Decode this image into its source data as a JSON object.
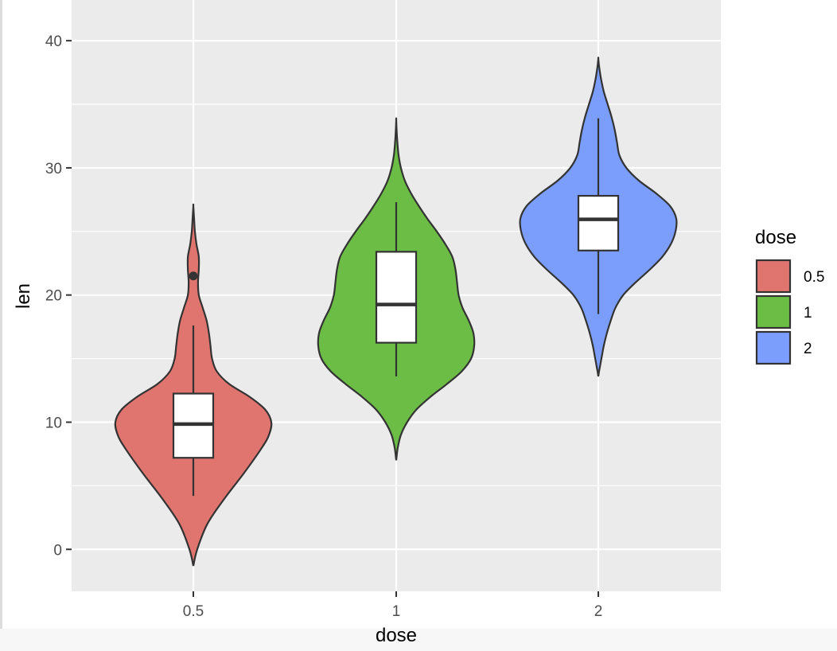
{
  "chart_data": {
    "type": "violin",
    "xlabel": "dose",
    "ylabel": "len",
    "categories": [
      "0.5",
      "1",
      "2"
    ],
    "ylim": [
      -3.3,
      43.2
    ],
    "y_ticks": [
      0,
      10,
      20,
      30,
      40
    ],
    "grid": true,
    "legend": {
      "title": "dose",
      "position": "right",
      "entries": [
        "0.5",
        "1",
        "2"
      ]
    },
    "series": [
      {
        "category": "0.5",
        "color": "#e07570",
        "min": -1.3,
        "max": 27.0,
        "box": {
          "whisker_low": 4.2,
          "q1": 7.2,
          "median": 9.85,
          "q3": 12.25,
          "whisker_high": 17.6
        },
        "outliers": [
          21.5
        ],
        "density": [
          [
            -1.3,
            0.0
          ],
          [
            0.0,
            0.05
          ],
          [
            2.0,
            0.18
          ],
          [
            4.0,
            0.4
          ],
          [
            6.0,
            0.65
          ],
          [
            8.0,
            0.88
          ],
          [
            9.0,
            0.97
          ],
          [
            10.0,
            1.0
          ],
          [
            11.0,
            0.92
          ],
          [
            12.0,
            0.72
          ],
          [
            13.0,
            0.46
          ],
          [
            14.0,
            0.3
          ],
          [
            15.0,
            0.24
          ],
          [
            16.0,
            0.22
          ],
          [
            17.0,
            0.2
          ],
          [
            18.0,
            0.17
          ],
          [
            19.0,
            0.12
          ],
          [
            20.0,
            0.07
          ],
          [
            21.0,
            0.06
          ],
          [
            22.0,
            0.07
          ],
          [
            23.0,
            0.07
          ],
          [
            24.0,
            0.04
          ],
          [
            25.0,
            0.02
          ],
          [
            26.0,
            0.01
          ],
          [
            27.0,
            0.0
          ]
        ]
      },
      {
        "category": "1",
        "color": "#6cbd45",
        "min": 7.0,
        "max": 33.8,
        "box": {
          "whisker_low": 13.6,
          "q1": 16.25,
          "median": 19.25,
          "q3": 23.4,
          "whisker_high": 27.3
        },
        "outliers": [],
        "density": [
          [
            7.0,
            0.0
          ],
          [
            8.0,
            0.02
          ],
          [
            9.0,
            0.06
          ],
          [
            10.0,
            0.14
          ],
          [
            11.0,
            0.26
          ],
          [
            12.0,
            0.44
          ],
          [
            13.0,
            0.65
          ],
          [
            14.0,
            0.84
          ],
          [
            15.0,
            0.96
          ],
          [
            16.0,
            1.0
          ],
          [
            17.0,
            0.99
          ],
          [
            18.0,
            0.93
          ],
          [
            19.0,
            0.85
          ],
          [
            20.0,
            0.8
          ],
          [
            21.0,
            0.78
          ],
          [
            22.0,
            0.76
          ],
          [
            23.0,
            0.72
          ],
          [
            24.0,
            0.63
          ],
          [
            25.0,
            0.52
          ],
          [
            26.0,
            0.4
          ],
          [
            27.0,
            0.29
          ],
          [
            28.0,
            0.19
          ],
          [
            29.0,
            0.11
          ],
          [
            30.0,
            0.06
          ],
          [
            31.0,
            0.03
          ],
          [
            32.0,
            0.015
          ],
          [
            33.0,
            0.005
          ],
          [
            33.8,
            0.0
          ]
        ]
      },
      {
        "category": "2",
        "color": "#7b9dfc",
        "min": 13.6,
        "max": 38.6,
        "box": {
          "whisker_low": 18.5,
          "q1": 23.5,
          "median": 25.95,
          "q3": 27.8,
          "whisker_high": 33.9
        },
        "outliers": [],
        "density": [
          [
            13.6,
            0.0
          ],
          [
            14.0,
            0.01
          ],
          [
            15.0,
            0.04
          ],
          [
            16.0,
            0.07
          ],
          [
            17.0,
            0.11
          ],
          [
            18.0,
            0.16
          ],
          [
            19.0,
            0.22
          ],
          [
            20.0,
            0.32
          ],
          [
            21.0,
            0.48
          ],
          [
            22.0,
            0.66
          ],
          [
            23.0,
            0.82
          ],
          [
            24.0,
            0.93
          ],
          [
            25.0,
            0.99
          ],
          [
            26.0,
            1.0
          ],
          [
            27.0,
            0.92
          ],
          [
            28.0,
            0.74
          ],
          [
            29.0,
            0.52
          ],
          [
            30.0,
            0.36
          ],
          [
            31.0,
            0.27
          ],
          [
            32.0,
            0.24
          ],
          [
            33.0,
            0.21
          ],
          [
            34.0,
            0.17
          ],
          [
            35.0,
            0.12
          ],
          [
            36.0,
            0.07
          ],
          [
            37.0,
            0.035
          ],
          [
            38.0,
            0.01
          ],
          [
            38.6,
            0.0
          ]
        ]
      }
    ]
  }
}
